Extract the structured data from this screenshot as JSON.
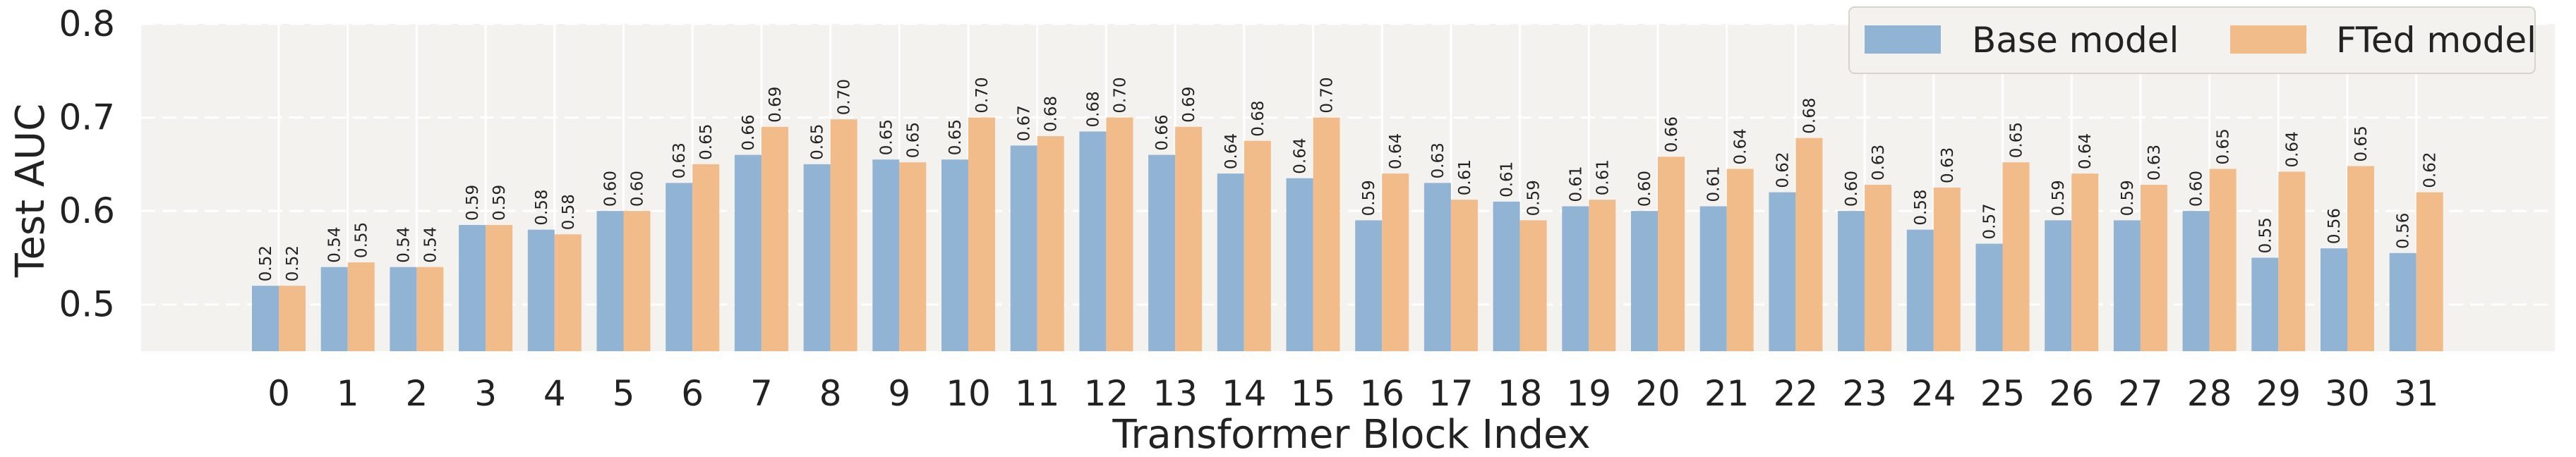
{
  "chart_data": {
    "type": "bar",
    "xlabel": "Transformer Block Index",
    "ylabel": "Test AUC",
    "ylim": [
      0.45,
      0.8
    ],
    "yticks": [
      "0.5",
      "0.6",
      "0.7",
      "0.8"
    ],
    "grid": true,
    "legend_position": "top-right",
    "categories": [
      "0",
      "1",
      "2",
      "3",
      "4",
      "5",
      "6",
      "7",
      "8",
      "9",
      "10",
      "11",
      "12",
      "13",
      "14",
      "15",
      "16",
      "17",
      "18",
      "19",
      "20",
      "21",
      "22",
      "23",
      "24",
      "25",
      "26",
      "27",
      "28",
      "29",
      "30",
      "31"
    ],
    "series": [
      {
        "name": "Base model",
        "color": "#92b4d4",
        "values": [
          0.52,
          0.54,
          0.54,
          0.585,
          0.58,
          0.6,
          0.63,
          0.66,
          0.65,
          0.655,
          0.655,
          0.67,
          0.685,
          0.66,
          0.64,
          0.635,
          0.59,
          0.63,
          0.61,
          0.605,
          0.6,
          0.605,
          0.62,
          0.6,
          0.58,
          0.565,
          0.59,
          0.59,
          0.6,
          0.55,
          0.56,
          0.555
        ],
        "labels": [
          "0.52",
          "0.54",
          "0.54",
          "0.59",
          "0.58",
          "0.60",
          "0.63",
          "0.66",
          "0.65",
          "0.65",
          "0.65",
          "0.67",
          "0.68",
          "0.66",
          "0.64",
          "0.64",
          "0.59",
          "0.63",
          "0.61",
          "0.61",
          "0.60",
          "0.61",
          "0.62",
          "0.60",
          "0.58",
          "0.57",
          "0.59",
          "0.59",
          "0.60",
          "0.55",
          "0.56",
          "0.56"
        ]
      },
      {
        "name": "FTed model",
        "color": "#f2bb8a",
        "values": [
          0.52,
          0.545,
          0.54,
          0.585,
          0.575,
          0.6,
          0.65,
          0.69,
          0.698,
          0.652,
          0.7,
          0.68,
          0.7,
          0.69,
          0.675,
          0.7,
          0.64,
          0.612,
          0.59,
          0.612,
          0.658,
          0.645,
          0.678,
          0.628,
          0.625,
          0.652,
          0.64,
          0.628,
          0.645,
          0.642,
          0.648,
          0.62
        ],
        "labels": [
          "0.52",
          "0.55",
          "0.54",
          "0.59",
          "0.58",
          "0.60",
          "0.65",
          "0.69",
          "0.70",
          "0.65",
          "0.70",
          "0.68",
          "0.70",
          "0.69",
          "0.68",
          "0.70",
          "0.64",
          "0.61",
          "0.59",
          "0.61",
          "0.66",
          "0.64",
          "0.68",
          "0.63",
          "0.63",
          "0.65",
          "0.64",
          "0.63",
          "0.65",
          "0.64",
          "0.65",
          "0.62"
        ]
      }
    ]
  }
}
